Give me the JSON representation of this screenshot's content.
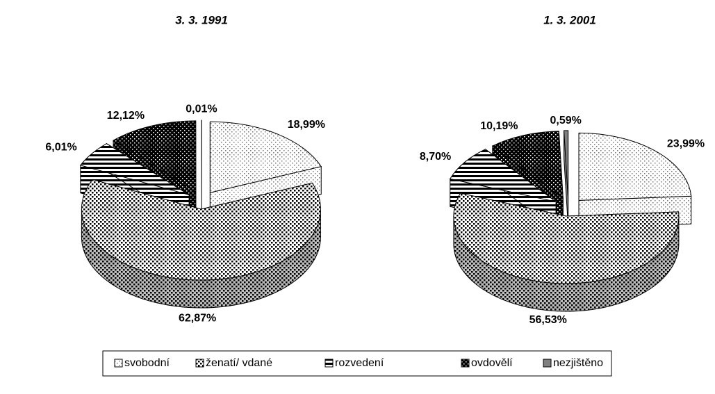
{
  "chart_data": {
    "type": "pie",
    "categories": [
      "svobodní",
      "ženatí/ vdané",
      "rozvedení",
      "ovdovělí",
      "nezjištěno"
    ],
    "colors": [
      "#ffffff",
      "#ffffff",
      "#ffffff",
      "#000000",
      "#808080"
    ],
    "legend": "bottom",
    "series": [
      {
        "name": "3. 3. 1991",
        "values": [
          18.99,
          62.87,
          6.01,
          12.12,
          0.01
        ],
        "value_labels": [
          "18,99%",
          "62,87%",
          "6,01%",
          "12,12%",
          "0,01%"
        ]
      },
      {
        "name": "1. 3. 2001",
        "values": [
          23.99,
          56.53,
          8.7,
          10.19,
          0.59
        ],
        "value_labels": [
          "23,99%",
          "56,53%",
          "8,70%",
          "10,19%",
          "0,59%"
        ]
      }
    ]
  }
}
